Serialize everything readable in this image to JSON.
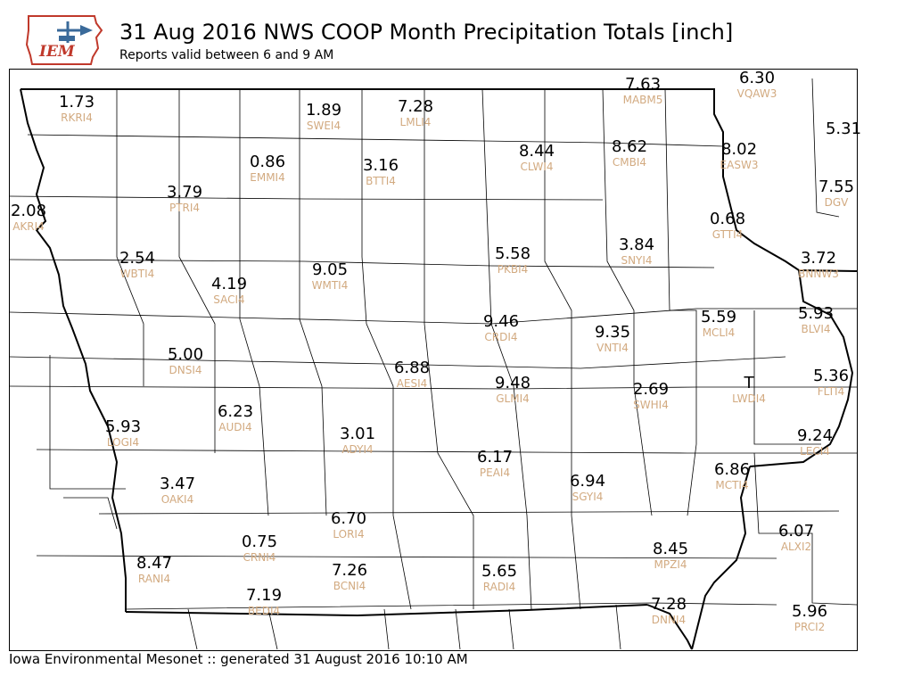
{
  "header": {
    "logo_text": "IEM",
    "title": "31 Aug 2016 NWS COOP Month Precipitation Totals [inch]",
    "subtitle": "Reports valid between 6 and 9 AM"
  },
  "footer": {
    "text": "Iowa Environmental Mesonet :: generated 31 August 2016 10:10 AM"
  },
  "colors": {
    "value_text": "#000000",
    "station_id_text": "#d2aa80",
    "logo_text": "#c0392b",
    "state_border": "#000000"
  },
  "stations": [
    {
      "id": "RKRI4",
      "value": "1.73"
    },
    {
      "id": "SWEI4",
      "value": "1.89"
    },
    {
      "id": "LMLI4",
      "value": "7.28"
    },
    {
      "id": "MABM5",
      "value": "7.63"
    },
    {
      "id": "VQAW3",
      "value": "6.30"
    },
    {
      "id": "CLWI4",
      "value": "8.44"
    },
    {
      "id": "CMBI4",
      "value": "8.62"
    },
    {
      "id": "EASW3",
      "value": "8.02"
    },
    {
      "id": "",
      "value": "5.31"
    },
    {
      "id": "EMMI4",
      "value": "0.86"
    },
    {
      "id": "BTTI4",
      "value": "3.16"
    },
    {
      "id": "PTRI4",
      "value": "3.79"
    },
    {
      "id": "DGV",
      "value": "7.55"
    },
    {
      "id": "AKRI4",
      "value": "2.08"
    },
    {
      "id": "GTTI4",
      "value": "0.68"
    },
    {
      "id": "WBTI4",
      "value": "2.54"
    },
    {
      "id": "PKBI4",
      "value": "5.58"
    },
    {
      "id": "SNYI4",
      "value": "3.84"
    },
    {
      "id": "BNNW3",
      "value": "3.72"
    },
    {
      "id": "SACI4",
      "value": "4.19"
    },
    {
      "id": "WMTI4",
      "value": "9.05"
    },
    {
      "id": "CRDI4",
      "value": "9.46"
    },
    {
      "id": "VNTI4",
      "value": "9.35"
    },
    {
      "id": "MCLI4",
      "value": "5.59"
    },
    {
      "id": "BLVI4",
      "value": "5.93"
    },
    {
      "id": "DNSI4",
      "value": "5.00"
    },
    {
      "id": "AESI4",
      "value": "6.88"
    },
    {
      "id": "GLMI4",
      "value": "9.48"
    },
    {
      "id": "SWHI4",
      "value": "2.69"
    },
    {
      "id": "LWDI4",
      "value": "T"
    },
    {
      "id": "FLTI4",
      "value": "5.36"
    },
    {
      "id": "LOGI4",
      "value": "5.93"
    },
    {
      "id": "AUDI4",
      "value": "6.23"
    },
    {
      "id": "ADYI4",
      "value": "3.01"
    },
    {
      "id": "LECI4",
      "value": "9.24"
    },
    {
      "id": "PEAI4",
      "value": "6.17"
    },
    {
      "id": "SGYI4",
      "value": "6.94"
    },
    {
      "id": "MCTI4",
      "value": "6.86"
    },
    {
      "id": "OAKI4",
      "value": "3.47"
    },
    {
      "id": "LORI4",
      "value": "6.70"
    },
    {
      "id": "ALXI2",
      "value": "6.07"
    },
    {
      "id": "CRNI4",
      "value": "0.75"
    },
    {
      "id": "MPZI4",
      "value": "8.45"
    },
    {
      "id": "RANI4",
      "value": "8.47"
    },
    {
      "id": "BCNI4",
      "value": "7.26"
    },
    {
      "id": "RADI4",
      "value": "5.65"
    },
    {
      "id": "BEDI4",
      "value": "7.19"
    },
    {
      "id": "DNNI4",
      "value": "7.28"
    },
    {
      "id": "PRCI2",
      "value": "5.96"
    }
  ]
}
